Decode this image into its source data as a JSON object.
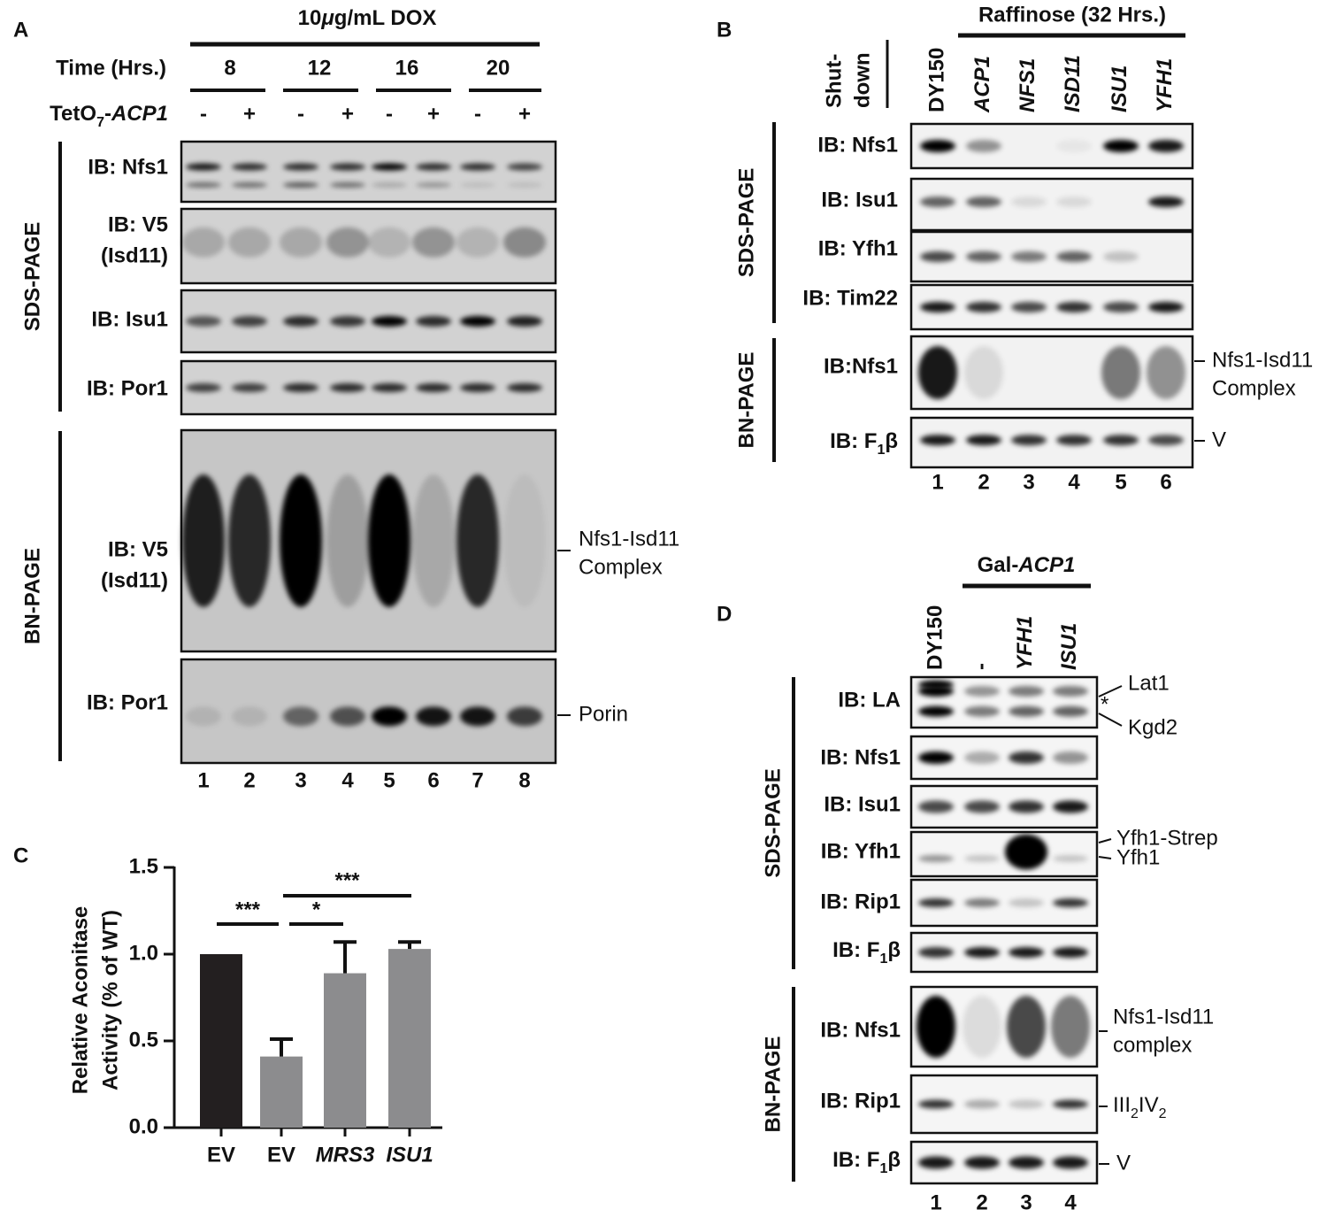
{
  "panel_a": {
    "letter": "A",
    "treatment": [
      "10",
      {
        "i": "μ"
      },
      "g/mL DOX"
    ],
    "time_label": "Time (Hrs.)",
    "times": [
      "8",
      "12",
      "16",
      "20"
    ],
    "strain_label": [
      "TetO",
      {
        "sub": "7"
      },
      "-",
      {
        "i": "ACP1"
      }
    ],
    "signs": [
      "-",
      "+",
      "-",
      "+",
      "-",
      "+",
      "-",
      "+"
    ],
    "sds_label": "SDS-PAGE",
    "bn_label": "BN-PAGE",
    "sds_blots": [
      [
        "IB: Nfs1"
      ],
      [
        "IB: V5",
        "(Isd11)"
      ],
      [
        "IB: Isu1"
      ],
      [
        "IB: Por1"
      ]
    ],
    "bn_blots": [
      [
        "IB: V5",
        "(Isd11)"
      ],
      [
        "IB: Por1"
      ]
    ],
    "annotations": [
      [
        "Nfs1-Isd11",
        "Complex"
      ],
      [
        "Porin"
      ]
    ],
    "lanes": [
      "1",
      "2",
      "3",
      "4",
      "5",
      "6",
      "7",
      "8"
    ]
  },
  "panel_b": {
    "letter": "B",
    "condition": "Raffinose (32 Hrs.)",
    "shutdown": [
      "Shut-",
      "down"
    ],
    "columns": [
      "DY150",
      {
        "i": "ACP1"
      },
      {
        "i": "NFS1"
      },
      {
        "i": "ISD11"
      },
      {
        "i": "ISU1"
      },
      {
        "i": "YFH1"
      }
    ],
    "sds_label": "SDS-PAGE",
    "bn_label": "BN-PAGE",
    "sds_blots": [
      [
        "IB: Nfs1"
      ],
      [
        "IB: Isu1"
      ],
      [
        "IB: Yfh1"
      ],
      [
        "IB: Tim22"
      ]
    ],
    "bn_blots": [
      [
        "IB:Nfs1"
      ],
      [
        [
          "IB: F",
          {
            "sub": "1"
          },
          "β"
        ]
      ]
    ],
    "annotations": [
      [
        "Nfs1-Isd11",
        "Complex"
      ],
      [
        "V"
      ]
    ],
    "lanes": [
      "1",
      "2",
      "3",
      "4",
      "5",
      "6"
    ]
  },
  "panel_d": {
    "letter": "D",
    "condition": [
      "Gal-",
      {
        "i": "ACP1"
      }
    ],
    "columns": [
      "DY150",
      "-",
      {
        "i": "YFH1"
      },
      {
        "i": "ISU1"
      }
    ],
    "sds_label": "SDS-PAGE",
    "bn_label": "BN-PAGE",
    "sds_blots": [
      [
        "IB: LA"
      ],
      [
        "IB: Nfs1"
      ],
      [
        "IB: Isu1"
      ],
      [
        "IB: Yfh1"
      ],
      [
        "IB: Rip1"
      ],
      [
        [
          "IB: F",
          {
            "sub": "1"
          },
          "β"
        ]
      ]
    ],
    "bn_blots": [
      [
        "IB: Nfs1"
      ],
      [
        "IB: Rip1"
      ],
      [
        [
          "IB: F",
          {
            "sub": "1"
          },
          "β"
        ]
      ]
    ],
    "annotations": [
      [
        "Lat1"
      ],
      [
        "*"
      ],
      [
        "Kgd2"
      ],
      [
        "Yfh1-Strep"
      ],
      [
        "Yfh1"
      ],
      [
        "Nfs1-Isd11",
        "complex"
      ],
      [
        [
          "III",
          {
            "sub": "2"
          },
          "IV",
          {
            "sub": "2"
          }
        ]
      ],
      [
        "V"
      ]
    ],
    "lanes": [
      "1",
      "2",
      "3",
      "4"
    ]
  },
  "chart_data": {
    "type": "bar",
    "letter": "C",
    "y_label": [
      "Relative Aconitase",
      "Activity (% of WT)"
    ],
    "categories": [
      "EV",
      "EV",
      "MRS3",
      "ISU1"
    ],
    "category_style": [
      "normal",
      "normal",
      "italic",
      "italic"
    ],
    "values": [
      1.0,
      0.41,
      0.89,
      1.03
    ],
    "errors": [
      null,
      0.1,
      0.18,
      0.04
    ],
    "colors": [
      "#231f20",
      "#8c8c8e",
      "#8c8c8e",
      "#8c8c8e"
    ],
    "ylim": [
      0,
      1.5
    ],
    "yticks": [
      {
        "value": 0,
        "label": "0.0"
      },
      {
        "value": 0.5,
        "label": "0.5"
      },
      {
        "value": 1,
        "label": "1.0"
      },
      {
        "value": 1.5,
        "label": "1.5"
      }
    ],
    "significance": [
      "***",
      "*",
      "***"
    ]
  }
}
